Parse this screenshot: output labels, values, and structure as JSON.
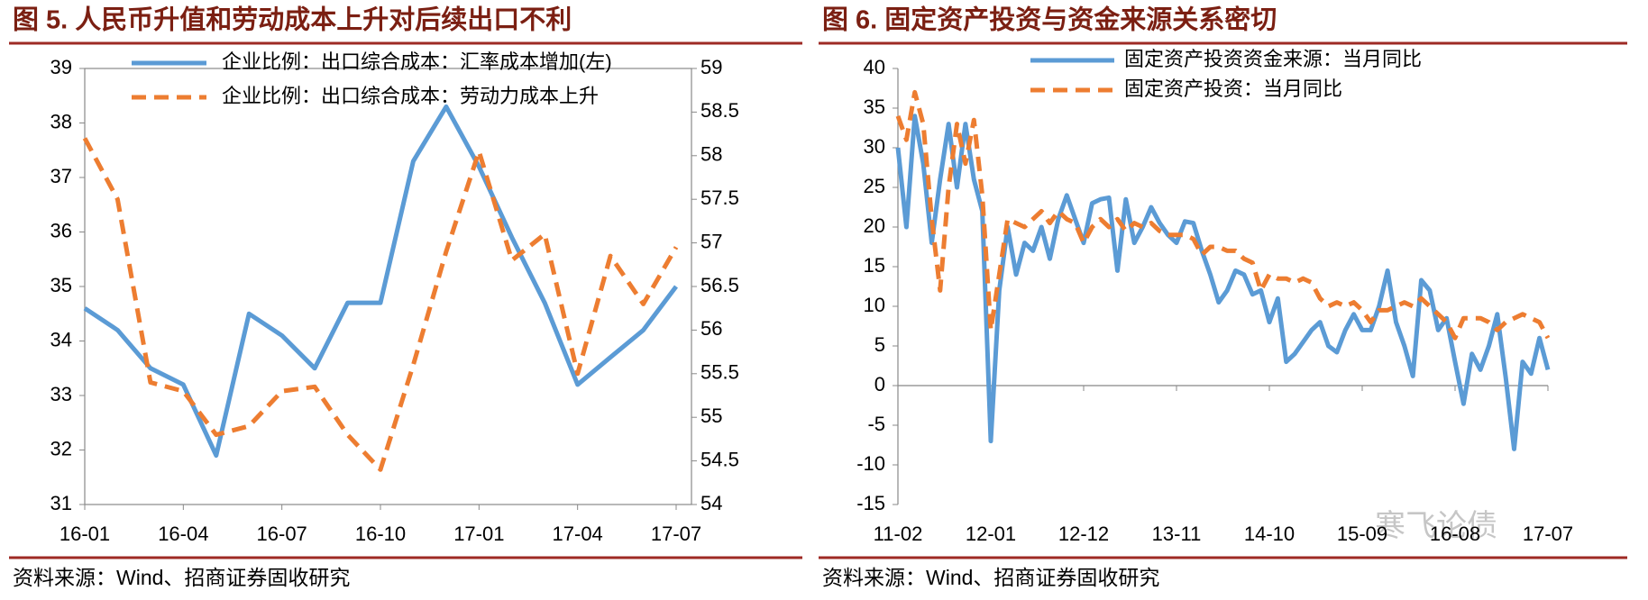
{
  "chart_data": [
    {
      "type": "line",
      "title": "图 5.  人民币升值和劳动成本上升对后续出口不利",
      "source": "资料来源：Wind、招商证券固收研究",
      "categories": [
        "16-01",
        null,
        null,
        "16-04",
        null,
        null,
        "16-07",
        null,
        null,
        "16-10",
        null,
        null,
        "17-01",
        null,
        null,
        "17-04",
        null,
        null,
        "17-07"
      ],
      "series": [
        {
          "name": "企业比例：出口综合成本：汇率成本增加(左)",
          "color": "#5b9bd5",
          "values": [
            34.6,
            34.2,
            33.5,
            33.2,
            31.9,
            34.5,
            34.1,
            33.5,
            34.7,
            34.7,
            37.3,
            38.3,
            37.2,
            35.9,
            34.7,
            33.2,
            33.7,
            34.2,
            35.0
          ]
        },
        {
          "name": "企业比例：出口综合成本：劳动力成本上升",
          "color": "#ed7d31",
          "dashed": true,
          "axis": "y2",
          "values": [
            58.2,
            57.5,
            55.4,
            55.3,
            54.8,
            54.9,
            55.3,
            55.35,
            54.8,
            54.4,
            55.6,
            56.9,
            58.05,
            56.8,
            57.1,
            55.5,
            56.85,
            56.3,
            56.95
          ]
        }
      ],
      "ylim": [
        31,
        39
      ],
      "yticks": [
        31,
        32,
        33,
        34,
        35,
        36,
        37,
        38,
        39
      ],
      "y2lim": [
        54,
        59
      ],
      "y2ticks": [
        54,
        54.5,
        55,
        55.5,
        56,
        56.5,
        57,
        57.5,
        58,
        58.5,
        59
      ],
      "frame": true
    },
    {
      "type": "line",
      "title": "图 6.  固定资产投资与资金来源关系密切",
      "source": "资料来源：Wind、招商证券固收研究",
      "annotation": "寒飞论债",
      "categories": [
        "11-02",
        null,
        null,
        null,
        null,
        null,
        null,
        null,
        null,
        null,
        null,
        "12-01",
        null,
        null,
        null,
        null,
        null,
        null,
        null,
        null,
        null,
        null,
        "12-12",
        null,
        null,
        null,
        null,
        null,
        null,
        null,
        null,
        null,
        null,
        "13-11",
        null,
        null,
        null,
        null,
        null,
        null,
        null,
        null,
        null,
        null,
        "14-10",
        null,
        null,
        null,
        null,
        null,
        null,
        null,
        null,
        null,
        null,
        "15-09",
        null,
        null,
        null,
        null,
        null,
        null,
        null,
        null,
        null,
        null,
        "16-08",
        null,
        null,
        null,
        null,
        null,
        null,
        null,
        null,
        null,
        null,
        "17-07"
      ],
      "series": [
        {
          "name": "固定资产投资资金来源：当月同比",
          "color": "#5b9bd5",
          "values": [
            30,
            20,
            34,
            28,
            18,
            26,
            33,
            25,
            33,
            26,
            22,
            -7,
            12,
            20,
            14,
            18,
            17,
            20,
            16,
            21,
            24,
            21,
            18,
            23,
            23.5,
            23.7,
            14.5,
            23.5,
            18,
            20,
            22.5,
            20.5,
            19,
            18,
            20.7,
            20.5,
            17,
            14,
            10.5,
            12,
            14.5,
            14,
            11.5,
            12,
            8,
            11,
            3,
            4,
            5.5,
            7,
            8,
            5,
            4.2,
            7,
            9,
            7,
            7,
            10,
            14.5,
            8,
            5,
            1.2,
            13.3,
            12,
            7,
            8.5,
            3,
            -2.3,
            4,
            2,
            5,
            9,
            1,
            -8,
            3,
            1.5,
            6,
            2
          ]
        },
        {
          "name": "固定资产投资：当月同比",
          "color": "#ed7d31",
          "dashed": true,
          "values": [
            34,
            31,
            37,
            33,
            21,
            12,
            25,
            33,
            28,
            33.5,
            24,
            7,
            14,
            21,
            20.5,
            20,
            21,
            22,
            20.5,
            22,
            21,
            20.5,
            18,
            20,
            21,
            20,
            21,
            19.5,
            20.5,
            20,
            20.5,
            19.5,
            19,
            19,
            19,
            18.5,
            16.5,
            17.5,
            17.5,
            17,
            17,
            16,
            15.5,
            12,
            14,
            13.5,
            13.5,
            13,
            13.5,
            13,
            11,
            10,
            10.5,
            10,
            10.5,
            9.5,
            8,
            9.5,
            9.5,
            10,
            10.5,
            10,
            11,
            10,
            9,
            8,
            6,
            8.5,
            8.5,
            8.5,
            8,
            7,
            8,
            8.5,
            9,
            8.5,
            8,
            6
          ]
        }
      ],
      "ylim": [
        -15,
        40
      ],
      "yticks": [
        -15,
        -10,
        -5,
        0,
        5,
        10,
        15,
        20,
        25,
        30,
        35,
        40
      ],
      "frame": false
    }
  ]
}
